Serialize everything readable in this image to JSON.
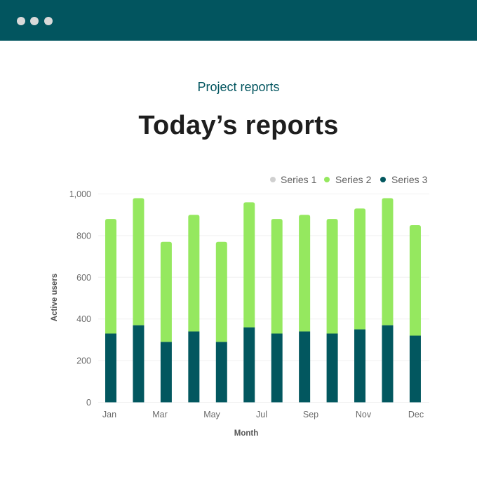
{
  "window": {
    "control_dots": 3
  },
  "header": {
    "subtitle": "Project reports",
    "title": "Today’s reports"
  },
  "colors": {
    "topbar": "#02555f",
    "series1": "#d0d0d0",
    "series2": "#95e85f",
    "series3": "#02575f"
  },
  "chart_data": {
    "type": "bar",
    "stacked": true,
    "categories": [
      "Jan",
      "Feb",
      "Mar",
      "Apr",
      "May",
      "Jun",
      "Jul",
      "Aug",
      "Sep",
      "Oct",
      "Nov",
      "Dec"
    ],
    "x_tick_labels": [
      "Jan",
      "",
      "Mar",
      "",
      "May",
      "",
      "Jul",
      "",
      "Sep",
      "",
      "Nov",
      "Dec"
    ],
    "series": [
      {
        "name": "Series 1",
        "color": "#d0d0d0",
        "values": [
          0,
          0,
          0,
          0,
          0,
          0,
          0,
          0,
          0,
          0,
          0,
          0
        ]
      },
      {
        "name": "Series 2",
        "color": "#95e85f",
        "values": [
          550,
          610,
          480,
          560,
          480,
          600,
          550,
          560,
          550,
          580,
          610,
          530
        ]
      },
      {
        "name": "Series 3",
        "color": "#02575f",
        "values": [
          330,
          370,
          290,
          340,
          290,
          360,
          330,
          340,
          330,
          350,
          370,
          320
        ]
      }
    ],
    "xlabel": "Month",
    "ylabel": "Active users",
    "ylim": [
      0,
      1000
    ],
    "yticks": [
      0,
      200,
      400,
      600,
      800,
      1000
    ],
    "ytick_labels": [
      "0",
      "200",
      "400",
      "600",
      "800",
      "1,000"
    ],
    "grid": true,
    "legend": "top-right"
  }
}
